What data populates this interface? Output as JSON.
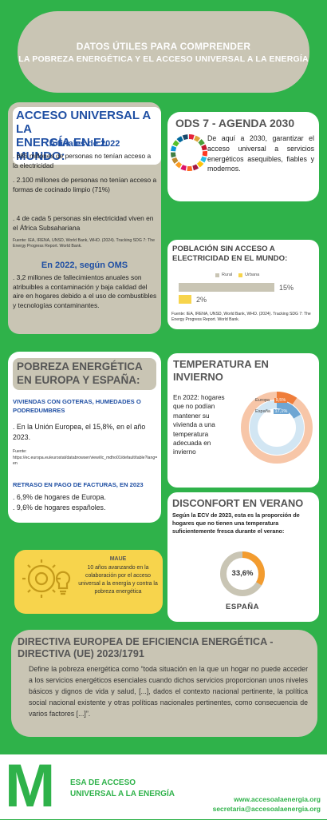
{
  "header": {
    "line1": "DATOS ÚTILES PARA COMPRENDER",
    "line2": "LA POBREZA ENERGÉTICA Y EL ACCESO UNIVERSAL A LA ENERGÍA"
  },
  "access": {
    "title1": "ACCESO UNIVERSAL A LA",
    "title2": "ENERGÍA EN EL MUNDO:",
    "subtitle2022": "A finales de 2022",
    "item1": ". 685 millones de personas no tenían acceso a la electricidad",
    "item2": ". 2.100 millones de personas no tenían acceso a formas de cocinado limpio (71%)",
    "item3": ". 4 de cada 5 personas sin electricidad viven en el África Subsahariana",
    "source1": "Fuente: IEA, IRENA, UNSD, World Bank, WHO. (2024). Tracking SDG 7: The Energy Progress Report. World Bank.",
    "subtitleOMS": "En 2022, según OMS",
    "item4": ". 3,2 millones de fallecimientos anuales son atribuibles a contaminación y baja calidad del aire en hogares debido a el uso de combustibles y tecnologías contaminantes."
  },
  "ods": {
    "title": "ODS 7 - AGENDA 2030",
    "text": "De aquí a 2030, garantizar el acceso universal a servicios energéticos asequibles, fiables y modernos."
  },
  "population": {
    "title": "POBLACIÓN SIN ACCESO A ELECTRICIDAD EN EL MUNDO:",
    "legend_rural": "Rural",
    "legend_urban": "Urbana",
    "source": "Fuente: IEA, IRENA, UNSD, World Bank, WHO. (2024). Tracking SDG 7: The Energy Progress Report. World Bank.",
    "colors": {
      "rural": "#c9c5b4",
      "urban": "#f7d44c"
    }
  },
  "chart_data": {
    "type": "bar",
    "categories": [
      "Rural",
      "Urbana"
    ],
    "values": [
      15,
      2
    ],
    "value_labels": [
      "15%",
      "2%"
    ],
    "xlim": [
      0,
      15
    ]
  },
  "poverty": {
    "title1": "POBREZA ENERGÉTICA",
    "title2": "EN EUROPA Y ESPAÑA:",
    "sub1": "VIVIENDAS CON GOTERAS,  HUMEDADES O PODREDUMBRES",
    "text1": ". En la Unión Europea, el 15,8%, en el año 2023.",
    "source_label": "Fuente:",
    "source_url": "https://ec.europa.eu/eurostat/databrowser/view/ilc_mdho01/default/table?lang=en",
    "sub2": "RETRASO EN PAGO DE FACTURAS, EN 2023",
    "text2": ". 6,9% de hogares de Europa.",
    "text3": ". 9,6% de hogares españoles."
  },
  "winter": {
    "title1": "TEMPERATURA EN",
    "title2": "INVIERNO",
    "text": "En 2022: hogares que no podían mantener su vivienda a una temperatura adecuada en invierno",
    "europe_label": "Europa",
    "europe_value": "9,5%",
    "spain_label": "España",
    "spain_value": "17,1%"
  },
  "summer": {
    "title": "DISCONFORT EN VERANO",
    "text": "Según la ECV de 2023, esta es la proporción de hogares que no tienen una temperatura suficientemente fresca durante el verano:",
    "value": "33,6%",
    "fraction": 0.336,
    "country": "ESPAÑA"
  },
  "maue": {
    "title": "MAUE",
    "text": "10 años avanzando en la colaboración por el acceso universal a la energía y contra la pobreza energética"
  },
  "directive": {
    "title1": "DIRECTIVA EUROPEA DE EFICIENCIA ENERGÉTICA -",
    "title2": "DIRECTIVA (UE) 2023/1791",
    "text": "Define la pobreza energética como “toda situación en la que un hogar no puede acceder a los servicios energéticos esenciales cuando dichos servicios proporcionan unos niveles básicos y dignos de vida y salud, [...], dados el contexto nacional pertinente, la política social nacional existente y otras políticas nacionales pertinentes, como consecuencia de varios factores [...]”."
  },
  "footer": {
    "logo_letter": "M",
    "line1": "ESA DE ACCESO",
    "line2": "UNIVERSAL A LA ENERGÍA",
    "web": "www.accesoalaenergia.org",
    "email": "secretaria@accesoalaenergia.org"
  }
}
